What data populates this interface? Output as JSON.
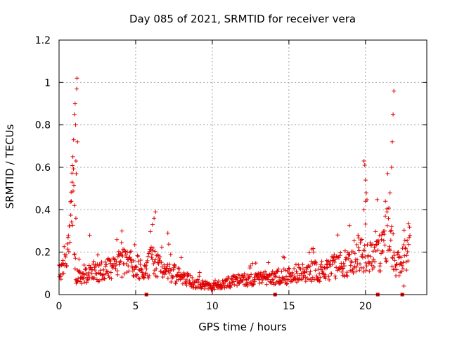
{
  "chart_data": {
    "type": "scatter",
    "title": "Day 085 of 2021, SRMTID for receiver vera",
    "xlabel": "GPS time / hours",
    "ylabel": "SRMTID / TECUs",
    "xlim": [
      0,
      24
    ],
    "ylim": [
      0,
      1.2
    ],
    "x_ticks": [
      0,
      5,
      10,
      15,
      20
    ],
    "x_tick_labels": [
      "0",
      "5",
      "10",
      "15",
      "20"
    ],
    "y_ticks": [
      0,
      0.2,
      0.4,
      0.6,
      0.8,
      1,
      1.2
    ],
    "y_tick_labels": [
      "0",
      "0.2",
      "0.4",
      "0.6",
      "0.8",
      "1",
      "1.2"
    ],
    "grid": true,
    "marker": "plus",
    "colors": {
      "points": "#e00000",
      "markers": "#e00000",
      "grid": "#a0a0a0",
      "axes": "#000000"
    },
    "series": [
      {
        "name": "SRMTID",
        "profile": [
          [
            0.0,
            0.11
          ],
          [
            0.4,
            0.14
          ],
          [
            0.6,
            0.22
          ],
          [
            0.8,
            0.35
          ],
          [
            0.9,
            0.5
          ],
          [
            1.0,
            0.3
          ],
          [
            1.1,
            0.08
          ],
          [
            1.5,
            0.09
          ],
          [
            2.0,
            0.1
          ],
          [
            3.0,
            0.11
          ],
          [
            4.0,
            0.15
          ],
          [
            5.0,
            0.14
          ],
          [
            5.5,
            0.1
          ],
          [
            6.0,
            0.16
          ],
          [
            6.5,
            0.13
          ],
          [
            7.0,
            0.12
          ],
          [
            8.0,
            0.08
          ],
          [
            9.0,
            0.05
          ],
          [
            10.0,
            0.04
          ],
          [
            11.0,
            0.06
          ],
          [
            12.0,
            0.07
          ],
          [
            13.0,
            0.07
          ],
          [
            14.0,
            0.08
          ],
          [
            15.0,
            0.09
          ],
          [
            16.0,
            0.11
          ],
          [
            17.0,
            0.11
          ],
          [
            18.0,
            0.13
          ],
          [
            19.0,
            0.15
          ],
          [
            19.5,
            0.2
          ],
          [
            20.0,
            0.18
          ],
          [
            20.5,
            0.17
          ],
          [
            21.0,
            0.2
          ],
          [
            21.5,
            0.3
          ],
          [
            21.8,
            0.2
          ],
          [
            22.0,
            0.13
          ],
          [
            22.5,
            0.17
          ],
          [
            22.9,
            0.26
          ]
        ],
        "spikes": [
          [
            0.8,
            0.44
          ],
          [
            0.85,
            0.53
          ],
          [
            0.9,
            0.65
          ],
          [
            0.95,
            0.73
          ],
          [
            1.0,
            0.85
          ],
          [
            1.05,
            0.9
          ],
          [
            1.08,
            0.8
          ],
          [
            1.1,
            0.63
          ],
          [
            1.12,
            0.57
          ],
          [
            1.15,
            0.97
          ],
          [
            1.17,
            1.02
          ],
          [
            1.2,
            0.72
          ],
          [
            1.0,
            0.42
          ],
          [
            1.1,
            0.36
          ],
          [
            6.2,
            0.36
          ],
          [
            6.3,
            0.39
          ],
          [
            6.1,
            0.33
          ],
          [
            2.0,
            0.28
          ],
          [
            4.1,
            0.3
          ],
          [
            7.1,
            0.29
          ],
          [
            19.9,
            0.63
          ],
          [
            19.95,
            0.61
          ],
          [
            20.0,
            0.54
          ],
          [
            20.05,
            0.48
          ],
          [
            20.0,
            0.44
          ],
          [
            19.9,
            0.4
          ],
          [
            21.3,
            0.44
          ],
          [
            21.4,
            0.39
          ],
          [
            21.6,
            0.48
          ],
          [
            21.7,
            0.6
          ],
          [
            21.75,
            0.72
          ],
          [
            21.8,
            0.85
          ],
          [
            21.85,
            0.96
          ],
          [
            22.5,
            0.04
          ]
        ]
      }
    ],
    "gap_markers_x": [
      5.7,
      14.1,
      20.8,
      22.4
    ]
  }
}
